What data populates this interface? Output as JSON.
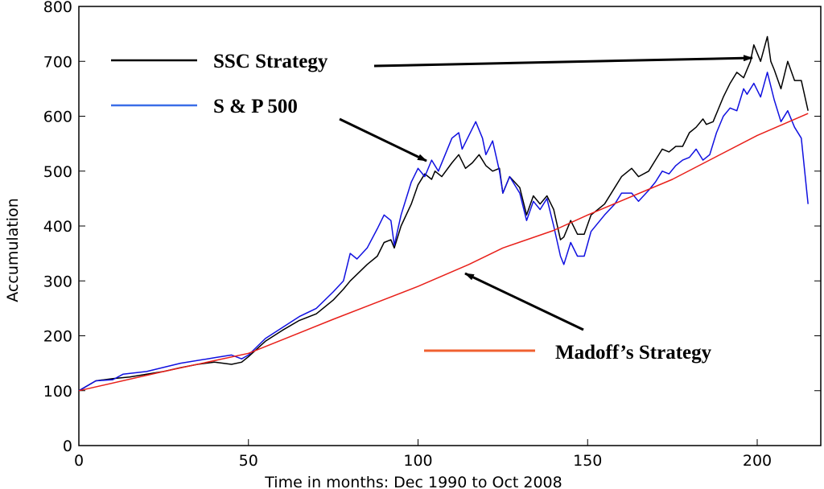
{
  "chart_data": {
    "type": "line",
    "title": "",
    "xlabel": "Time in months: Dec 1990 to Oct 2008",
    "ylabel": "Accumulation",
    "xlim": [
      0,
      215
    ],
    "ylim": [
      0,
      800
    ],
    "xticks": [
      0,
      50,
      100,
      150,
      200
    ],
    "yticks": [
      0,
      100,
      200,
      300,
      400,
      500,
      600,
      700,
      800
    ],
    "grid": false,
    "legend_placement": "inline annotations with arrows",
    "series": [
      {
        "name": "SSC Strategy",
        "color": "#000000",
        "points": [
          [
            0,
            100
          ],
          [
            5,
            118
          ],
          [
            10,
            122
          ],
          [
            15,
            125
          ],
          [
            20,
            130
          ],
          [
            25,
            135
          ],
          [
            30,
            142
          ],
          [
            35,
            148
          ],
          [
            40,
            152
          ],
          [
            45,
            148
          ],
          [
            48,
            152
          ],
          [
            50,
            162
          ],
          [
            55,
            190
          ],
          [
            60,
            210
          ],
          [
            65,
            228
          ],
          [
            70,
            240
          ],
          [
            75,
            265
          ],
          [
            78,
            285
          ],
          [
            80,
            300
          ],
          [
            85,
            330
          ],
          [
            88,
            345
          ],
          [
            90,
            370
          ],
          [
            92,
            375
          ],
          [
            93,
            360
          ],
          [
            95,
            400
          ],
          [
            98,
            440
          ],
          [
            100,
            475
          ],
          [
            102,
            495
          ],
          [
            104,
            485
          ],
          [
            105,
            500
          ],
          [
            107,
            490
          ],
          [
            110,
            515
          ],
          [
            112,
            530
          ],
          [
            114,
            505
          ],
          [
            116,
            515
          ],
          [
            118,
            530
          ],
          [
            120,
            510
          ],
          [
            122,
            500
          ],
          [
            124,
            505
          ],
          [
            125,
            460
          ],
          [
            127,
            490
          ],
          [
            130,
            470
          ],
          [
            132,
            420
          ],
          [
            134,
            455
          ],
          [
            136,
            440
          ],
          [
            138,
            455
          ],
          [
            140,
            430
          ],
          [
            142,
            375
          ],
          [
            143,
            380
          ],
          [
            145,
            410
          ],
          [
            147,
            385
          ],
          [
            149,
            385
          ],
          [
            151,
            420
          ],
          [
            155,
            440
          ],
          [
            158,
            470
          ],
          [
            160,
            490
          ],
          [
            163,
            505
          ],
          [
            165,
            490
          ],
          [
            168,
            500
          ],
          [
            170,
            520
          ],
          [
            172,
            540
          ],
          [
            174,
            535
          ],
          [
            176,
            545
          ],
          [
            178,
            545
          ],
          [
            180,
            570
          ],
          [
            182,
            580
          ],
          [
            184,
            595
          ],
          [
            185,
            585
          ],
          [
            187,
            590
          ],
          [
            190,
            635
          ],
          [
            192,
            660
          ],
          [
            194,
            680
          ],
          [
            196,
            670
          ],
          [
            198,
            700
          ],
          [
            199,
            730
          ],
          [
            201,
            700
          ],
          [
            203,
            745
          ],
          [
            204,
            700
          ],
          [
            205,
            685
          ],
          [
            207,
            650
          ],
          [
            209,
            700
          ],
          [
            211,
            665
          ],
          [
            213,
            665
          ],
          [
            215,
            610
          ]
        ]
      },
      {
        "name": "S & P 500",
        "color": "#1010e0",
        "points": [
          [
            0,
            100
          ],
          [
            5,
            118
          ],
          [
            10,
            120
          ],
          [
            13,
            130
          ],
          [
            20,
            135
          ],
          [
            30,
            150
          ],
          [
            40,
            160
          ],
          [
            45,
            165
          ],
          [
            48,
            158
          ],
          [
            50,
            165
          ],
          [
            55,
            195
          ],
          [
            60,
            215
          ],
          [
            65,
            235
          ],
          [
            70,
            250
          ],
          [
            75,
            280
          ],
          [
            78,
            300
          ],
          [
            80,
            350
          ],
          [
            82,
            340
          ],
          [
            85,
            360
          ],
          [
            88,
            395
          ],
          [
            90,
            420
          ],
          [
            92,
            410
          ],
          [
            93,
            365
          ],
          [
            95,
            420
          ],
          [
            98,
            480
          ],
          [
            100,
            505
          ],
          [
            102,
            490
          ],
          [
            104,
            520
          ],
          [
            106,
            500
          ],
          [
            108,
            530
          ],
          [
            110,
            560
          ],
          [
            112,
            570
          ],
          [
            113,
            540
          ],
          [
            115,
            565
          ],
          [
            117,
            590
          ],
          [
            119,
            560
          ],
          [
            120,
            530
          ],
          [
            122,
            555
          ],
          [
            124,
            500
          ],
          [
            125,
            460
          ],
          [
            127,
            490
          ],
          [
            130,
            460
          ],
          [
            132,
            410
          ],
          [
            134,
            445
          ],
          [
            136,
            430
          ],
          [
            138,
            450
          ],
          [
            140,
            400
          ],
          [
            142,
            345
          ],
          [
            143,
            330
          ],
          [
            145,
            370
          ],
          [
            147,
            345
          ],
          [
            149,
            345
          ],
          [
            151,
            390
          ],
          [
            155,
            420
          ],
          [
            158,
            440
          ],
          [
            160,
            460
          ],
          [
            163,
            460
          ],
          [
            165,
            445
          ],
          [
            168,
            465
          ],
          [
            170,
            480
          ],
          [
            172,
            500
          ],
          [
            174,
            495
          ],
          [
            176,
            510
          ],
          [
            178,
            520
          ],
          [
            180,
            525
          ],
          [
            182,
            540
          ],
          [
            184,
            520
          ],
          [
            186,
            530
          ],
          [
            188,
            570
          ],
          [
            190,
            600
          ],
          [
            192,
            615
          ],
          [
            194,
            610
          ],
          [
            196,
            650
          ],
          [
            197,
            640
          ],
          [
            199,
            660
          ],
          [
            201,
            635
          ],
          [
            203,
            680
          ],
          [
            205,
            630
          ],
          [
            207,
            590
          ],
          [
            209,
            610
          ],
          [
            211,
            580
          ],
          [
            213,
            560
          ],
          [
            214,
            500
          ],
          [
            215,
            440
          ]
        ]
      },
      {
        "name": "Madoff's Strategy",
        "color": "#e8201a",
        "points": [
          [
            0,
            100
          ],
          [
            25,
            135
          ],
          [
            50,
            168
          ],
          [
            75,
            230
          ],
          [
            100,
            290
          ],
          [
            115,
            330
          ],
          [
            125,
            360
          ],
          [
            140,
            392
          ],
          [
            150,
            420
          ],
          [
            175,
            485
          ],
          [
            200,
            565
          ],
          [
            215,
            605
          ]
        ]
      }
    ],
    "annotations": [
      {
        "text": "SSC Strategy",
        "legend_color": "#000000"
      },
      {
        "text": "S & P 500",
        "legend_color": "#3a6ee8"
      },
      {
        "text": "Madoff’s Strategy",
        "legend_color": "#f06030"
      }
    ]
  }
}
